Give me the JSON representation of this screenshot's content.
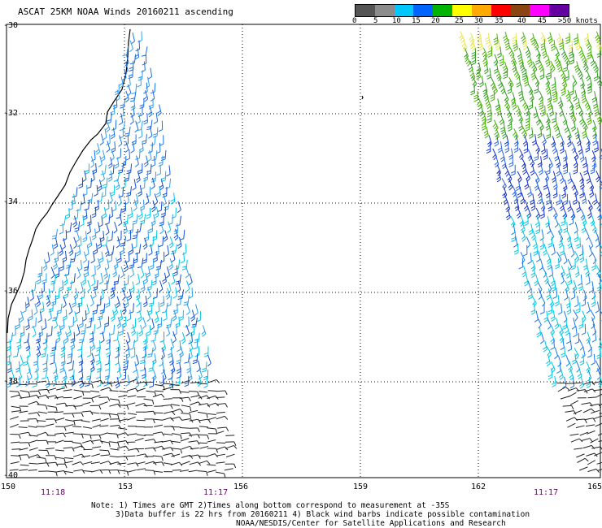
{
  "title": "ASCAT 25KM NOAA Winds 20160211 ascending",
  "legend": {
    "labels": [
      "0",
      "5",
      "10",
      "15",
      "20",
      "25",
      "30",
      "35",
      "40",
      "45",
      ">50 knots"
    ],
    "colors": [
      "#555555",
      "#8c8c8c",
      "#00c8ff",
      "#0064ff",
      "#00b400",
      "#ffff00",
      "#ffaa00",
      "#ff0000",
      "#8b4513",
      "#ff00ff",
      "#6400a0"
    ]
  },
  "map": {
    "lat_labels": [
      "-30",
      "-32",
      "-34",
      "-36",
      "-38",
      "-40"
    ],
    "lon_labels": [
      "150",
      "153",
      "156",
      "159",
      "162",
      "165"
    ],
    "pass_times": [
      "11:18",
      "11:17",
      "11:17"
    ]
  },
  "notes": [
    "Note: 1) Times are GMT 2)Times along bottom correspond to measurement at -35S",
    "3)Data buffer is 22 hrs from 20160211 4) Black wind barbs indicate possible contamination",
    "NOAA/NESDIS/Center for Satellite Applications and Research"
  ]
}
